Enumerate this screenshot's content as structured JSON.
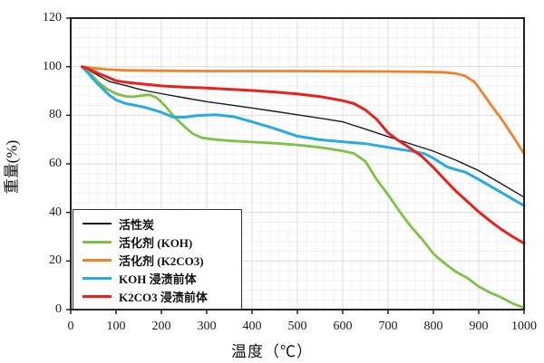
{
  "chart_data": {
    "type": "line",
    "title": "",
    "xlabel": "温度（℃）",
    "ylabel": "重量(%)",
    "xlim": [
      0,
      1000
    ],
    "ylim": [
      0,
      120
    ],
    "xticks": [
      0,
      100,
      200,
      300,
      400,
      500,
      600,
      700,
      800,
      900,
      1000
    ],
    "yticks": [
      0,
      20,
      40,
      60,
      80,
      100,
      120
    ],
    "grid": {
      "minor_x_step": 20,
      "minor_y_step": 4,
      "major_color": "#dedede",
      "minor_color": "#f0f0f0",
      "on": true
    },
    "legend_position": "bottom-left",
    "series": [
      {
        "name": "活性炭",
        "color": "#1a1a1a",
        "width": 1.4,
        "points": [
          [
            25,
            100
          ],
          [
            40,
            98.6
          ],
          [
            60,
            96.5
          ],
          [
            84,
            94.0
          ],
          [
            100,
            93.2
          ],
          [
            120,
            92.3
          ],
          [
            150,
            90.8
          ],
          [
            174,
            89.8
          ],
          [
            200,
            88.9
          ],
          [
            250,
            87.2
          ],
          [
            300,
            85.6
          ],
          [
            350,
            84.3
          ],
          [
            400,
            83.0
          ],
          [
            450,
            81.6
          ],
          [
            500,
            80.2
          ],
          [
            550,
            78.8
          ],
          [
            600,
            77.3
          ],
          [
            650,
            74.3
          ],
          [
            700,
            71.2
          ],
          [
            750,
            68.2
          ],
          [
            800,
            65.2
          ],
          [
            850,
            61.5
          ],
          [
            900,
            57.2
          ],
          [
            950,
            51.8
          ],
          [
            1000,
            46.3
          ]
        ]
      },
      {
        "name": "活化剂 (KOH)",
        "color": "#7DC242",
        "width": 2.8,
        "points": [
          [
            25,
            100
          ],
          [
            40,
            97.8
          ],
          [
            60,
            93.8
          ],
          [
            80,
            90.8
          ],
          [
            100,
            88.9
          ],
          [
            120,
            87.8
          ],
          [
            140,
            87.6
          ],
          [
            160,
            88.2
          ],
          [
            175,
            88.4
          ],
          [
            190,
            87.2
          ],
          [
            210,
            83.5
          ],
          [
            230,
            79.0
          ],
          [
            250,
            75.5
          ],
          [
            270,
            72.3
          ],
          [
            290,
            70.7
          ],
          [
            320,
            70.0
          ],
          [
            360,
            69.4
          ],
          [
            400,
            69.0
          ],
          [
            450,
            68.5
          ],
          [
            500,
            67.8
          ],
          [
            550,
            66.8
          ],
          [
            600,
            65.3
          ],
          [
            625,
            64.3
          ],
          [
            650,
            61.0
          ],
          [
            675,
            53.5
          ],
          [
            700,
            47.3
          ],
          [
            725,
            40.5
          ],
          [
            750,
            34.3
          ],
          [
            775,
            29.0
          ],
          [
            800,
            23.0
          ],
          [
            825,
            19.0
          ],
          [
            850,
            15.5
          ],
          [
            875,
            13.0
          ],
          [
            900,
            9.5
          ],
          [
            925,
            7.0
          ],
          [
            950,
            5.0
          ],
          [
            975,
            2.5
          ],
          [
            1000,
            0.8
          ]
        ]
      },
      {
        "name": "活化剂 (K2CO3)",
        "color": "#F0832A",
        "width": 2.8,
        "points": [
          [
            25,
            100
          ],
          [
            50,
            99.4
          ],
          [
            80,
            98.9
          ],
          [
            120,
            98.5
          ],
          [
            200,
            98.3
          ],
          [
            300,
            98.2
          ],
          [
            400,
            98.2
          ],
          [
            500,
            98.2
          ],
          [
            600,
            98.1
          ],
          [
            700,
            98.0
          ],
          [
            780,
            97.9
          ],
          [
            820,
            97.7
          ],
          [
            850,
            97.2
          ],
          [
            870,
            96.2
          ],
          [
            890,
            93.8
          ],
          [
            900,
            91.4
          ],
          [
            915,
            87.5
          ],
          [
            925,
            84.8
          ],
          [
            950,
            78.5
          ],
          [
            975,
            71.5
          ],
          [
            1000,
            64.2
          ]
        ]
      },
      {
        "name": "KOH 浸渍前体",
        "color": "#29ABE2",
        "width": 3.0,
        "points": [
          [
            25,
            100
          ],
          [
            40,
            97.0
          ],
          [
            55,
            93.8
          ],
          [
            70,
            91.0
          ],
          [
            85,
            88.3
          ],
          [
            100,
            86.3
          ],
          [
            120,
            84.9
          ],
          [
            140,
            84.2
          ],
          [
            160,
            83.4
          ],
          [
            180,
            82.4
          ],
          [
            200,
            81.2
          ],
          [
            225,
            79.3
          ],
          [
            250,
            79.2
          ],
          [
            280,
            79.9
          ],
          [
            320,
            80.2
          ],
          [
            360,
            79.4
          ],
          [
            400,
            77.3
          ],
          [
            450,
            74.5
          ],
          [
            500,
            71.4
          ],
          [
            550,
            69.9
          ],
          [
            600,
            69.1
          ],
          [
            650,
            68.3
          ],
          [
            700,
            66.8
          ],
          [
            750,
            65.3
          ],
          [
            780,
            64.2
          ],
          [
            800,
            62.3
          ],
          [
            830,
            58.8
          ],
          [
            850,
            57.6
          ],
          [
            870,
            56.6
          ],
          [
            900,
            53.6
          ],
          [
            950,
            48.2
          ],
          [
            1000,
            42.8
          ]
        ]
      },
      {
        "name": "K2CO3 浸渍前体",
        "color": "#E8211D",
        "width": 3.0,
        "points": [
          [
            25,
            100
          ],
          [
            40,
            99.0
          ],
          [
            60,
            97.3
          ],
          [
            80,
            95.8
          ],
          [
            100,
            94.2
          ],
          [
            120,
            93.6
          ],
          [
            150,
            93.0
          ],
          [
            200,
            92.1
          ],
          [
            250,
            91.6
          ],
          [
            300,
            91.2
          ],
          [
            350,
            90.7
          ],
          [
            400,
            90.2
          ],
          [
            450,
            89.6
          ],
          [
            500,
            88.8
          ],
          [
            550,
            87.7
          ],
          [
            600,
            86.0
          ],
          [
            625,
            84.8
          ],
          [
            650,
            82.2
          ],
          [
            675,
            78.3
          ],
          [
            700,
            72.8
          ],
          [
            720,
            70.0
          ],
          [
            750,
            66.3
          ],
          [
            775,
            63.0
          ],
          [
            800,
            58.5
          ],
          [
            825,
            53.5
          ],
          [
            850,
            48.7
          ],
          [
            875,
            44.5
          ],
          [
            900,
            40.2
          ],
          [
            925,
            36.5
          ],
          [
            950,
            33.0
          ],
          [
            975,
            30.0
          ],
          [
            1000,
            27.3
          ]
        ]
      }
    ]
  }
}
